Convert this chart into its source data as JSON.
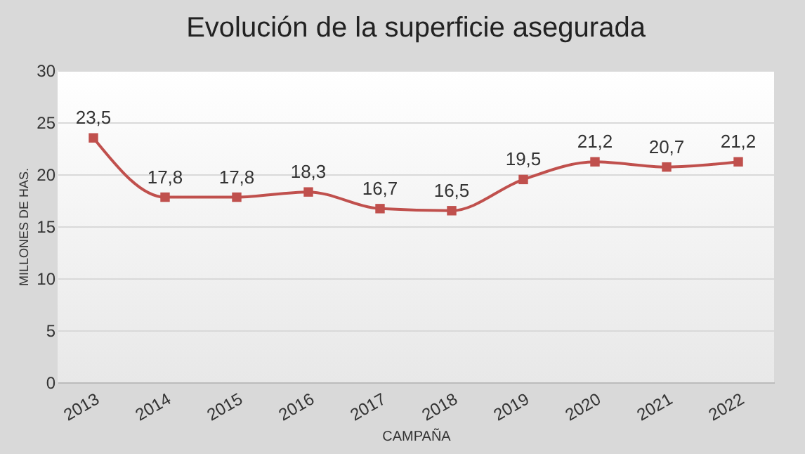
{
  "chart_data": {
    "type": "line",
    "title": "Evolución  de la superficie  asegurada",
    "xlabel": "CAMPAÑA",
    "ylabel": "MILLONES DE HAS.",
    "categories": [
      "2013",
      "2014",
      "2015",
      "2016",
      "2017",
      "2018",
      "2019",
      "2020",
      "2021",
      "2022"
    ],
    "series": [
      {
        "color": "#c0504d",
        "values": [
          23.5,
          17.8,
          17.8,
          18.3,
          16.7,
          16.5,
          19.5,
          21.2,
          20.7,
          21.2
        ],
        "value_labels": [
          "23,5",
          "17,8",
          "17,8",
          "18,3",
          "16,7",
          "16,5",
          "19,5",
          "21,2",
          "20,7",
          "21,2"
        ]
      }
    ],
    "ylim": [
      0,
      30
    ],
    "yticks": [
      0,
      5,
      10,
      15,
      20,
      25,
      30
    ],
    "grid": "y",
    "marker": "square",
    "line_style": "solid"
  }
}
